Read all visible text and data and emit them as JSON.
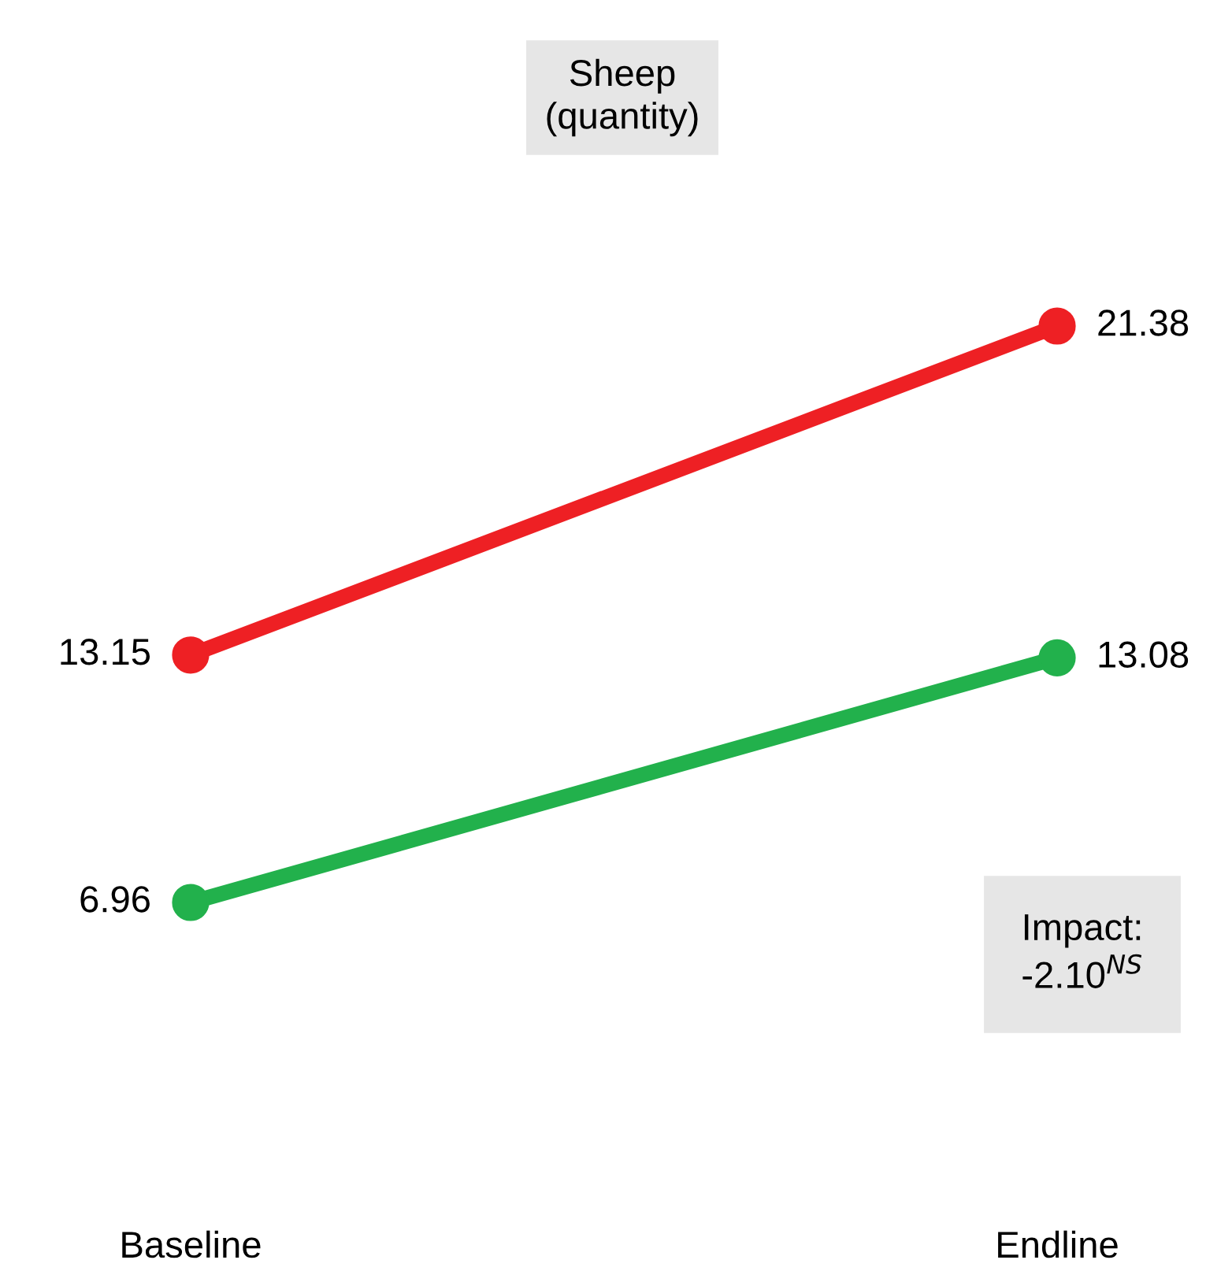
{
  "chart_data": {
    "type": "line",
    "title": "Sheep\n(quantity)",
    "categories": [
      "Baseline",
      "Endline"
    ],
    "series": [
      {
        "color": "#ee2024",
        "values": [
          13.15,
          21.38
        ]
      },
      {
        "color": "#22b14c",
        "values": [
          6.96,
          13.08
        ]
      }
    ],
    "data_labels": true,
    "marker": "circle",
    "line_style": "solid",
    "grid": false,
    "legend": false,
    "annotations": [
      "Impact:\n-2.10$^{NS}$"
    ]
  }
}
